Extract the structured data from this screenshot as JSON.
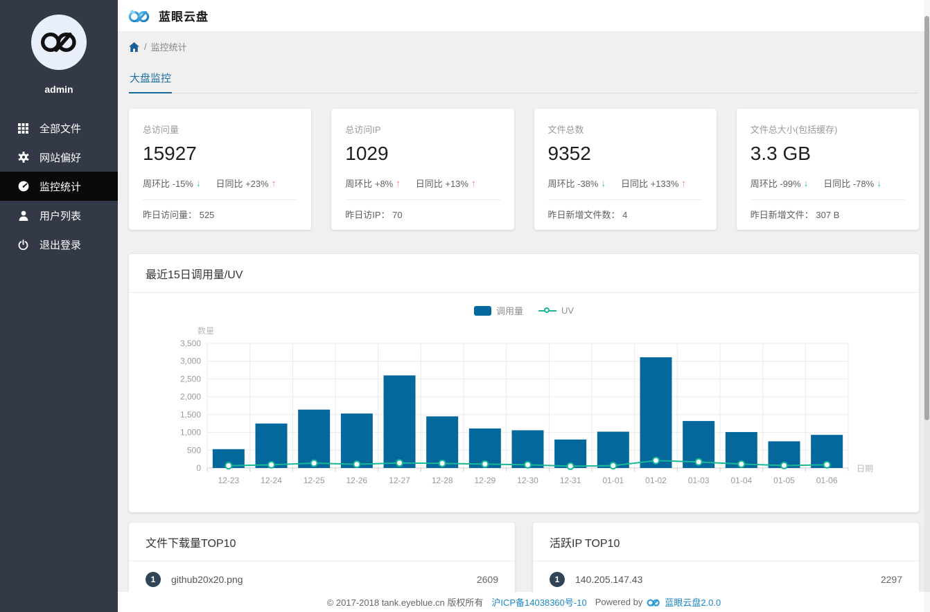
{
  "app": {
    "title": "蓝眼云盘",
    "footer_copyright": "© 2017-2018 tank.eyeblue.cn 版权所有",
    "footer_icp": "沪ICP备14038360号-10",
    "footer_powered_by": "Powered by",
    "footer_version": "蓝眼云盘2.0.0"
  },
  "sidebar": {
    "username": "admin",
    "items": [
      {
        "label": "全部文件",
        "icon": "grid-icon",
        "active": false
      },
      {
        "label": "网站偏好",
        "icon": "gear-icon",
        "active": false
      },
      {
        "label": "监控统计",
        "icon": "gauge-icon",
        "active": true
      },
      {
        "label": "用户列表",
        "icon": "user-icon",
        "active": false
      },
      {
        "label": "退出登录",
        "icon": "power-icon",
        "active": false
      }
    ]
  },
  "breadcrumb": {
    "separator": "/",
    "current": "监控统计"
  },
  "tabs": [
    {
      "label": "大盘监控",
      "active": true
    }
  ],
  "stat_cards": [
    {
      "label": "总访问量",
      "value": "15927",
      "week": "周环比 -15%",
      "week_dir": "down",
      "day": "日同比 +23%",
      "day_dir": "up",
      "footer_label": "昨日访问量：",
      "footer_value": "525"
    },
    {
      "label": "总访问IP",
      "value": "1029",
      "week": "周环比 +8%",
      "week_dir": "up",
      "day": "日同比 +13%",
      "day_dir": "up",
      "footer_label": "昨日访IP：",
      "footer_value": "70"
    },
    {
      "label": "文件总数",
      "value": "9352",
      "week": "周环比 -38%",
      "week_dir": "down",
      "day": "日同比 +133%",
      "day_dir": "up",
      "footer_label": "昨日新增文件数：",
      "footer_value": "4"
    },
    {
      "label": "文件总大小(包括缓存)",
      "value": "3.3 GB",
      "week": "周环比 -99%",
      "week_dir": "down",
      "day": "日同比 -78%",
      "day_dir": "down",
      "footer_label": "昨日新增文件：",
      "footer_value": "307 B"
    }
  ],
  "chart_card": {
    "title": "最近15日调用量/UV"
  },
  "chart_data": {
    "type": "bar+line",
    "title": "最近15日调用量/UV",
    "categories": [
      "12-23",
      "12-24",
      "12-25",
      "12-26",
      "12-27",
      "12-28",
      "12-29",
      "12-30",
      "12-31",
      "01-01",
      "01-02",
      "01-03",
      "01-04",
      "01-05",
      "01-06"
    ],
    "series": [
      {
        "name": "调用量",
        "type": "bar",
        "color": "#05689d",
        "values": [
          530,
          1250,
          1640,
          1530,
          2600,
          1450,
          1110,
          1060,
          800,
          1020,
          3110,
          1320,
          1010,
          750,
          930
        ]
      },
      {
        "name": "UV",
        "type": "line",
        "color": "#18b897",
        "values": [
          65,
          90,
          135,
          105,
          140,
          130,
          110,
          90,
          50,
          65,
          210,
          170,
          110,
          70,
          90
        ]
      }
    ],
    "xlabel": "日期",
    "ylabel": "数量",
    "ylim": [
      0,
      3500
    ],
    "ytick_step": 500,
    "grid": true,
    "legend_position": "top-center"
  },
  "top_lists": [
    {
      "title": "文件下载量TOP10",
      "rows": [
        {
          "rank": "1",
          "name": "github20x20.png",
          "value": "2609"
        }
      ]
    },
    {
      "title": "活跃IP TOP10",
      "rows": [
        {
          "rank": "1",
          "name": "140.205.147.43",
          "value": "2297"
        }
      ]
    }
  ],
  "colors": {
    "sidebar_bg": "#333947",
    "sidebar_active_bg": "#0a0a0a",
    "accent_blue": "#1a6ea6",
    "bar_blue": "#05689d",
    "line_teal": "#18b897",
    "trend_up": "#f87a5e",
    "trend_down": "#2bbd9b",
    "link_blue": "#1a87c9",
    "badge_bg": "#2f4456"
  }
}
